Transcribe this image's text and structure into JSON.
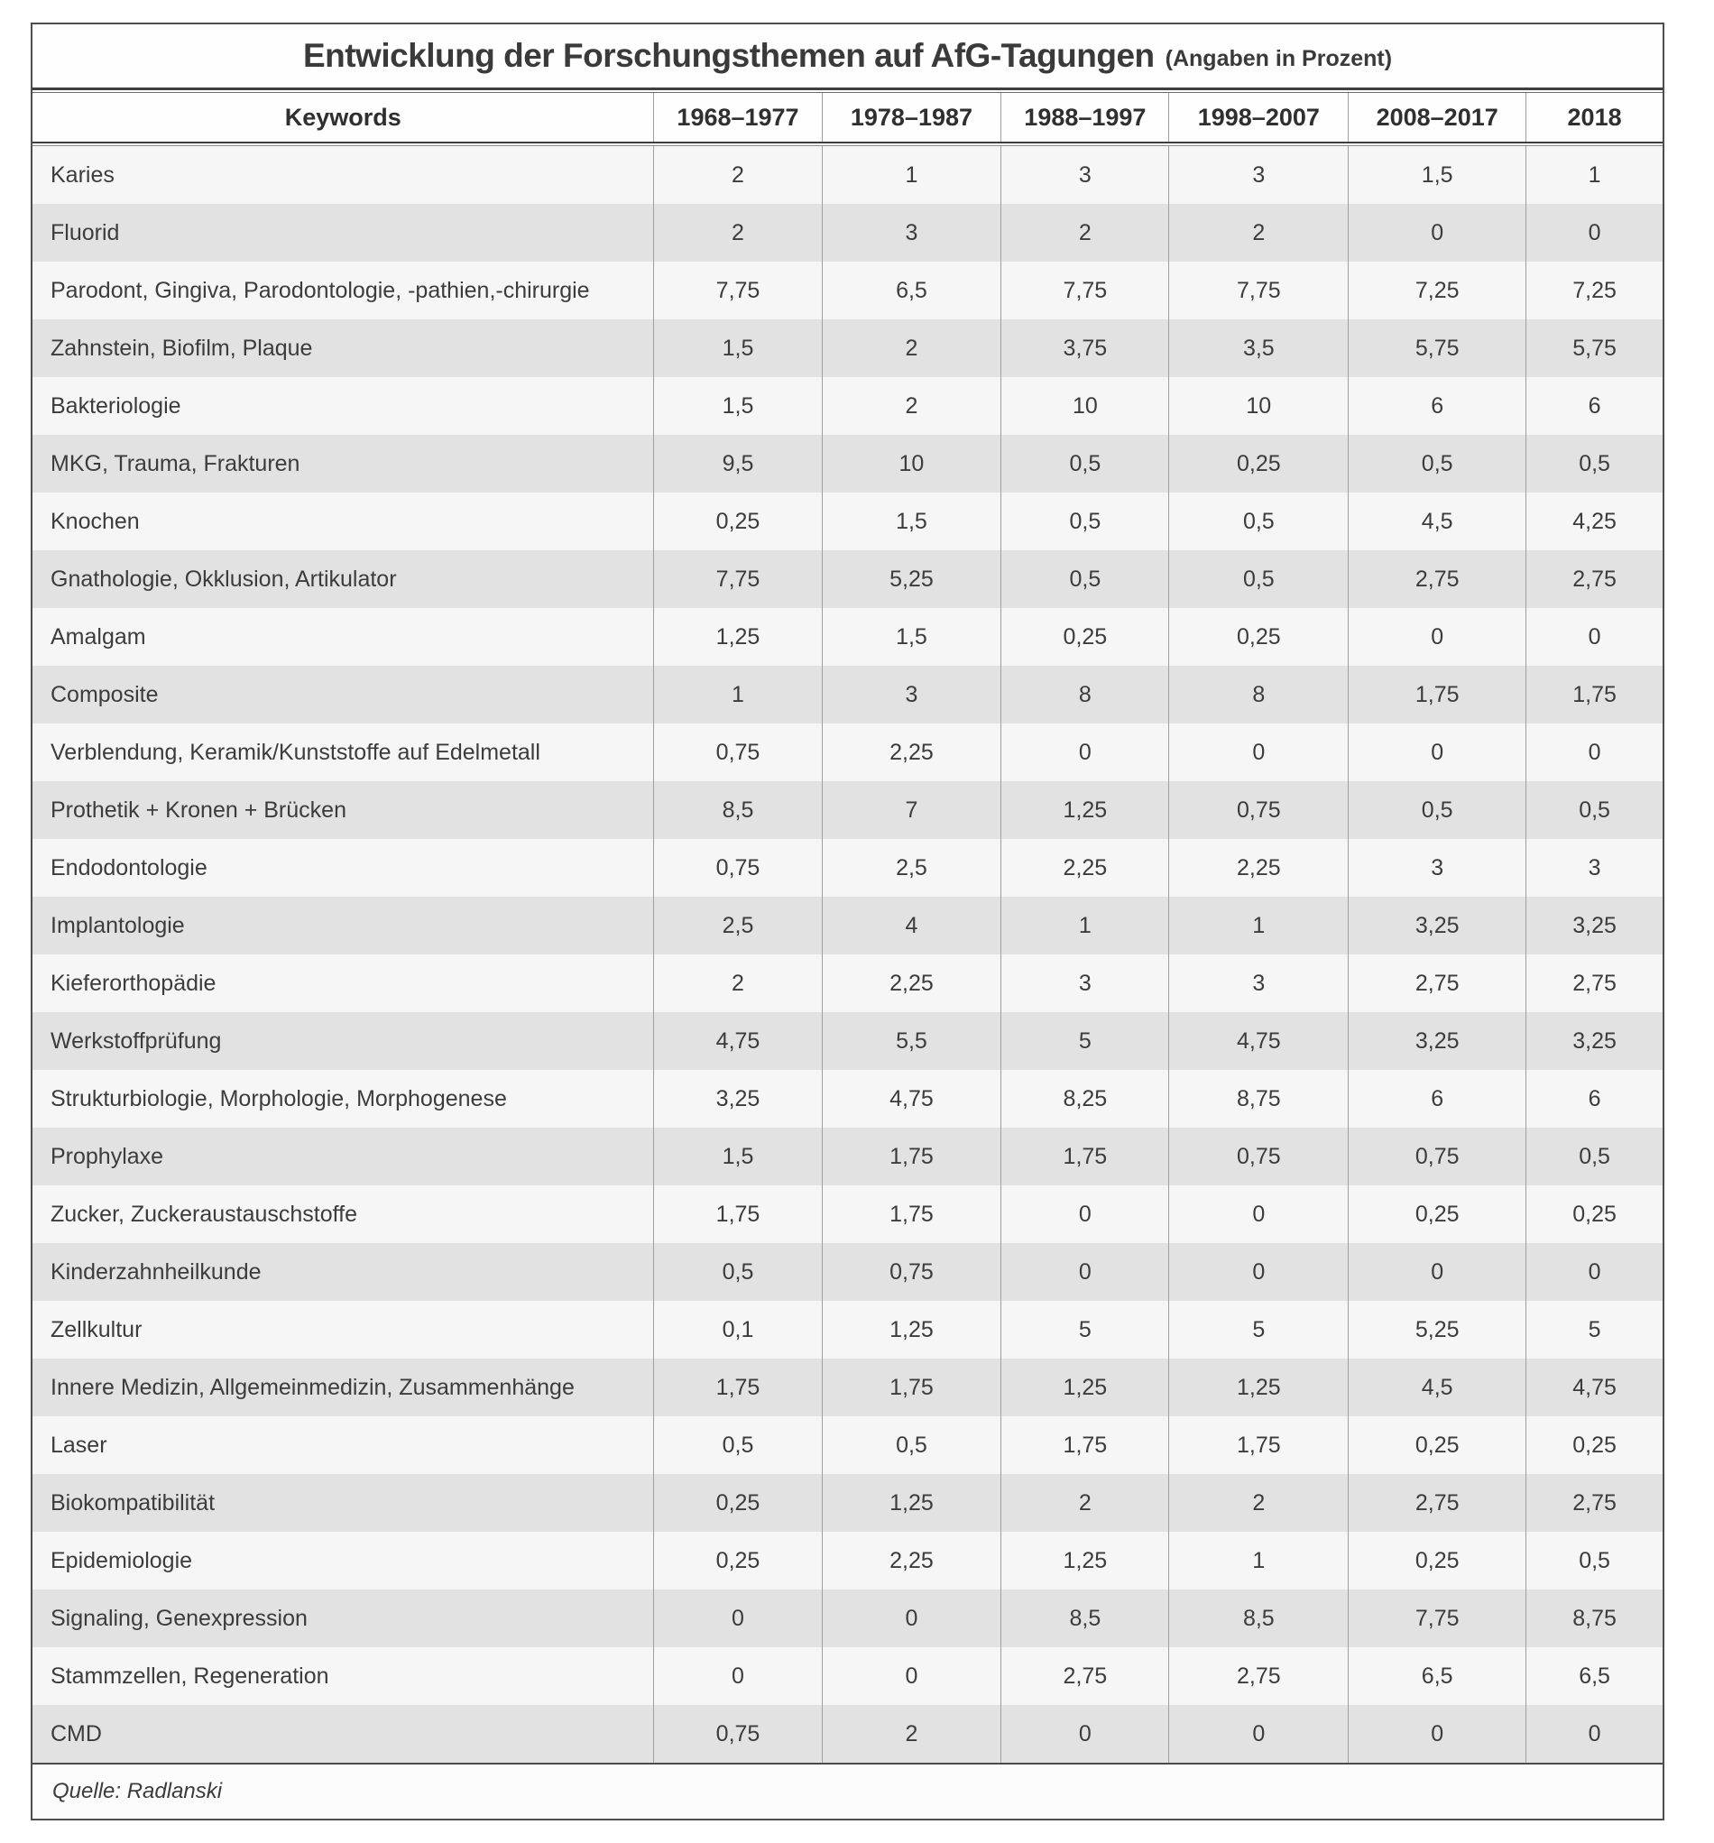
{
  "title": {
    "main": "Entwicklung der Forschungsthemen auf AfG-Tagungen",
    "suffix": "(Angaben in Prozent)"
  },
  "table": {
    "columns": [
      "Keywords",
      "1968–1977",
      "1978–1987",
      "1988–1997",
      "1998–2007",
      "2008–2017",
      "2018"
    ],
    "rows": [
      {
        "keyword": "Karies",
        "values": [
          "2",
          "1",
          "3",
          "3",
          "1,5",
          "1"
        ]
      },
      {
        "keyword": "Fluorid",
        "values": [
          "2",
          "3",
          "2",
          "2",
          "0",
          "0"
        ]
      },
      {
        "keyword": "Parodont, Gingiva, Parodontologie, -pathien,-chirurgie",
        "values": [
          "7,75",
          "6,5",
          "7,75",
          "7,75",
          "7,25",
          "7,25"
        ]
      },
      {
        "keyword": "Zahnstein, Biofilm, Plaque",
        "values": [
          "1,5",
          "2",
          "3,75",
          "3,5",
          "5,75",
          "5,75"
        ]
      },
      {
        "keyword": "Bakteriologie",
        "values": [
          "1,5",
          "2",
          "10",
          "10",
          "6",
          "6"
        ]
      },
      {
        "keyword": "MKG, Trauma, Frakturen",
        "values": [
          "9,5",
          "10",
          "0,5",
          "0,25",
          "0,5",
          "0,5"
        ]
      },
      {
        "keyword": "Knochen",
        "values": [
          "0,25",
          "1,5",
          "0,5",
          "0,5",
          "4,5",
          "4,25"
        ]
      },
      {
        "keyword": "Gnathologie, Okklusion, Artikulator",
        "values": [
          "7,75",
          "5,25",
          "0,5",
          "0,5",
          "2,75",
          "2,75"
        ]
      },
      {
        "keyword": "Amalgam",
        "values": [
          "1,25",
          "1,5",
          "0,25",
          "0,25",
          "0",
          "0"
        ]
      },
      {
        "keyword": "Composite",
        "values": [
          "1",
          "3",
          "8",
          "8",
          "1,75",
          "1,75"
        ]
      },
      {
        "keyword": "Verblendung, Keramik/Kunststoffe auf Edelmetall",
        "values": [
          "0,75",
          "2,25",
          "0",
          "0",
          "0",
          "0"
        ]
      },
      {
        "keyword": "Prothetik + Kronen + Brücken",
        "values": [
          "8,5",
          "7",
          "1,25",
          "0,75",
          "0,5",
          "0,5"
        ]
      },
      {
        "keyword": "Endodontologie",
        "values": [
          "0,75",
          "2,5",
          "2,25",
          "2,25",
          "3",
          "3"
        ]
      },
      {
        "keyword": "Implantologie",
        "values": [
          "2,5",
          "4",
          "1",
          "1",
          "3,25",
          "3,25"
        ]
      },
      {
        "keyword": "Kieferorthopädie",
        "values": [
          "2",
          "2,25",
          "3",
          "3",
          "2,75",
          "2,75"
        ]
      },
      {
        "keyword": "Werkstoffprüfung",
        "values": [
          "4,75",
          "5,5",
          "5",
          "4,75",
          "3,25",
          "3,25"
        ]
      },
      {
        "keyword": "Strukturbiologie, Morphologie, Morphogenese",
        "values": [
          "3,25",
          "4,75",
          "8,25",
          "8,75",
          "6",
          "6"
        ]
      },
      {
        "keyword": "Prophylaxe",
        "values": [
          "1,5",
          "1,75",
          "1,75",
          "0,75",
          "0,75",
          "0,5"
        ]
      },
      {
        "keyword": "Zucker, Zuckeraustauschstoffe",
        "values": [
          "1,75",
          "1,75",
          "0",
          "0",
          "0,25",
          "0,25"
        ]
      },
      {
        "keyword": "Kinderzahnheilkunde",
        "values": [
          "0,5",
          "0,75",
          "0",
          "0",
          "0",
          "0"
        ]
      },
      {
        "keyword": "Zellkultur",
        "values": [
          "0,1",
          "1,25",
          "5",
          "5",
          "5,25",
          "5"
        ]
      },
      {
        "keyword": "Innere Medizin, Allgemeinmedizin, Zusammenhänge",
        "values": [
          "1,75",
          "1,75",
          "1,25",
          "1,25",
          "4,5",
          "4,75"
        ]
      },
      {
        "keyword": "Laser",
        "values": [
          "0,5",
          "0,5",
          "1,75",
          "1,75",
          "0,25",
          "0,25"
        ]
      },
      {
        "keyword": "Biokompatibilität",
        "values": [
          "0,25",
          "1,25",
          "2",
          "2",
          "2,75",
          "2,75"
        ]
      },
      {
        "keyword": "Epidemiologie",
        "values": [
          "0,25",
          "2,25",
          "1,25",
          "1",
          "0,25",
          "0,5"
        ]
      },
      {
        "keyword": "Signaling, Genexpression",
        "values": [
          "0",
          "0",
          "8,5",
          "8,5",
          "7,75",
          "8,75"
        ]
      },
      {
        "keyword": "Stammzellen, Regeneration",
        "values": [
          "0",
          "0",
          "2,75",
          "2,75",
          "6,5",
          "6,5"
        ]
      },
      {
        "keyword": "CMD",
        "values": [
          "0,75",
          "2",
          "0",
          "0",
          "0",
          "0"
        ]
      }
    ]
  },
  "footer": {
    "source": "Quelle: Radlanski"
  },
  "colors": {
    "stripe_gray": "#e2e2e2",
    "row_light": "#f6f6f6",
    "rule_dark": "#3f3f3f",
    "cell_separator": "#9f9f9f",
    "text": "#3c3c3c"
  },
  "chart_data": {
    "type": "table",
    "title": "Entwicklung der Forschungsthemen auf AfG-Tagungen (Angaben in Prozent)",
    "unit": "percent",
    "categories": [
      "1968–1977",
      "1978–1987",
      "1988–1997",
      "1998–2007",
      "2008–2017",
      "2018"
    ],
    "series": [
      {
        "name": "Karies",
        "values": [
          2,
          1,
          3,
          3,
          1.5,
          1
        ]
      },
      {
        "name": "Fluorid",
        "values": [
          2,
          3,
          2,
          2,
          0,
          0
        ]
      },
      {
        "name": "Parodont, Gingiva, Parodontologie, -pathien,-chirurgie",
        "values": [
          7.75,
          6.5,
          7.75,
          7.75,
          7.25,
          7.25
        ]
      },
      {
        "name": "Zahnstein, Biofilm, Plaque",
        "values": [
          1.5,
          2,
          3.75,
          3.5,
          5.75,
          5.75
        ]
      },
      {
        "name": "Bakteriologie",
        "values": [
          1.5,
          2,
          10,
          10,
          6,
          6
        ]
      },
      {
        "name": "MKG, Trauma, Frakturen",
        "values": [
          9.5,
          10,
          0.5,
          0.25,
          0.5,
          0.5
        ]
      },
      {
        "name": "Knochen",
        "values": [
          0.25,
          1.5,
          0.5,
          0.5,
          4.5,
          4.25
        ]
      },
      {
        "name": "Gnathologie, Okklusion, Artikulator",
        "values": [
          7.75,
          5.25,
          0.5,
          0.5,
          2.75,
          2.75
        ]
      },
      {
        "name": "Amalgam",
        "values": [
          1.25,
          1.5,
          0.25,
          0.25,
          0,
          0
        ]
      },
      {
        "name": "Composite",
        "values": [
          1,
          3,
          8,
          8,
          1.75,
          1.75
        ]
      },
      {
        "name": "Verblendung, Keramik/Kunststoffe auf Edelmetall",
        "values": [
          0.75,
          2.25,
          0,
          0,
          0,
          0
        ]
      },
      {
        "name": "Prothetik + Kronen + Brücken",
        "values": [
          8.5,
          7,
          1.25,
          0.75,
          0.5,
          0.5
        ]
      },
      {
        "name": "Endodontologie",
        "values": [
          0.75,
          2.5,
          2.25,
          2.25,
          3,
          3
        ]
      },
      {
        "name": "Implantologie",
        "values": [
          2.5,
          4,
          1,
          1,
          3.25,
          3.25
        ]
      },
      {
        "name": "Kieferorthopädie",
        "values": [
          2,
          2.25,
          3,
          3,
          2.75,
          2.75
        ]
      },
      {
        "name": "Werkstoffprüfung",
        "values": [
          4.75,
          5.5,
          5,
          4.75,
          3.25,
          3.25
        ]
      },
      {
        "name": "Strukturbiologie, Morphologie, Morphogenese",
        "values": [
          3.25,
          4.75,
          8.25,
          8.75,
          6,
          6
        ]
      },
      {
        "name": "Prophylaxe",
        "values": [
          1.5,
          1.75,
          1.75,
          0.75,
          0.75,
          0.5
        ]
      },
      {
        "name": "Zucker, Zuckeraustauschstoffe",
        "values": [
          1.75,
          1.75,
          0,
          0,
          0.25,
          0.25
        ]
      },
      {
        "name": "Kinderzahnheilkunde",
        "values": [
          0.5,
          0.75,
          0,
          0,
          0,
          0
        ]
      },
      {
        "name": "Zellkultur",
        "values": [
          0.1,
          1.25,
          5,
          5,
          5.25,
          5
        ]
      },
      {
        "name": "Innere Medizin, Allgemeinmedizin, Zusammenhänge",
        "values": [
          1.75,
          1.75,
          1.25,
          1.25,
          4.5,
          4.75
        ]
      },
      {
        "name": "Laser",
        "values": [
          0.5,
          0.5,
          1.75,
          1.75,
          0.25,
          0.25
        ]
      },
      {
        "name": "Biokompatibilität",
        "values": [
          0.25,
          1.25,
          2,
          2,
          2.75,
          2.75
        ]
      },
      {
        "name": "Epidemiologie",
        "values": [
          0.25,
          2.25,
          1.25,
          1,
          0.25,
          0.5
        ]
      },
      {
        "name": "Signaling, Genexpression",
        "values": [
          0,
          0,
          8.5,
          8.5,
          7.75,
          8.75
        ]
      },
      {
        "name": "Stammzellen, Regeneration",
        "values": [
          0,
          0,
          2.75,
          2.75,
          6.5,
          6.5
        ]
      },
      {
        "name": "CMD",
        "values": [
          0.75,
          2,
          0,
          0,
          0,
          0
        ]
      }
    ]
  }
}
